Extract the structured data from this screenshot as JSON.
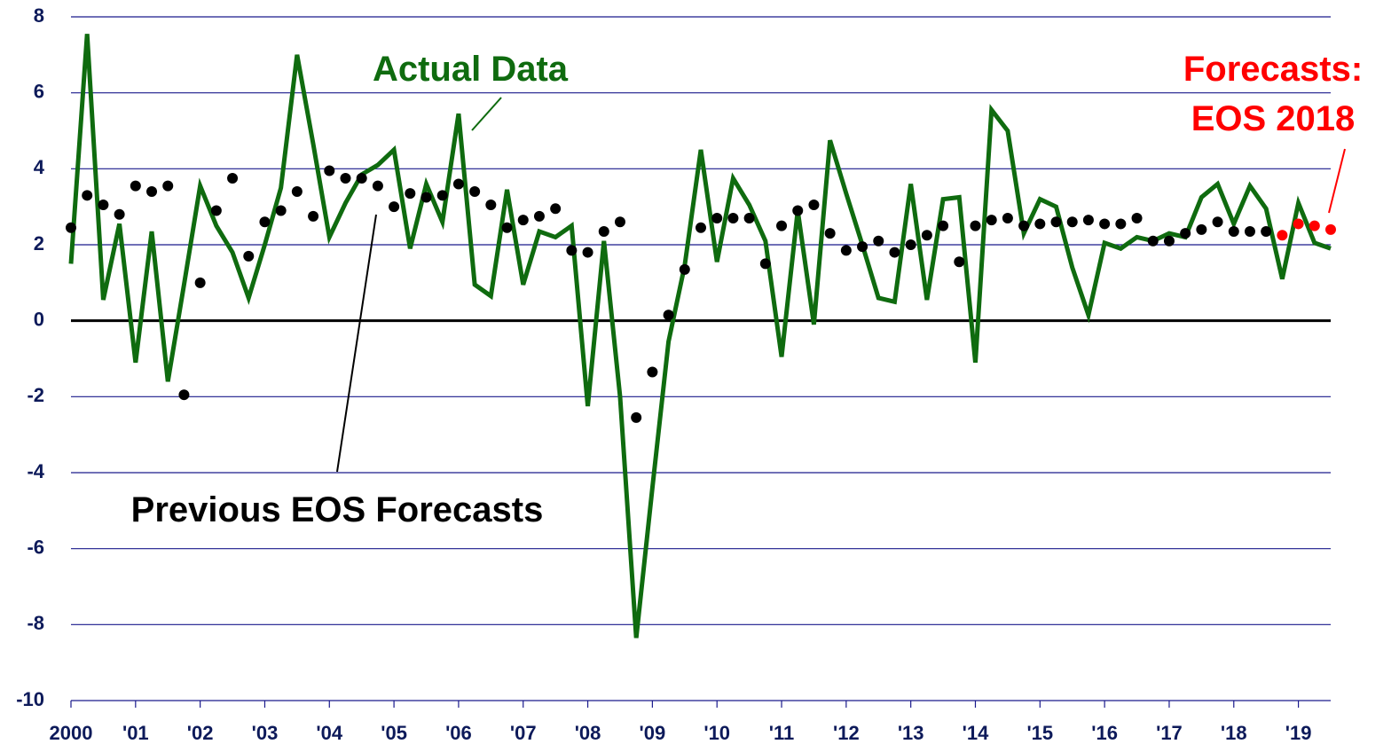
{
  "chart_data": {
    "type": "line",
    "ylim": [
      -10,
      8
    ],
    "yticks": [
      -10,
      -8,
      -6,
      -4,
      -2,
      0,
      2,
      4,
      6,
      8
    ],
    "grid": true,
    "xlim": [
      2000,
      2019.5
    ],
    "xticks": [
      2000,
      {
        "value": 2001,
        "label": "'01"
      },
      {
        "value": 2002,
        "label": "'02"
      },
      {
        "value": 2003,
        "label": "'03"
      },
      {
        "value": 2004,
        "label": "'04"
      },
      {
        "value": 2005,
        "label": "'05"
      },
      {
        "value": 2006,
        "label": "'06"
      },
      {
        "value": 2007,
        "label": "'07"
      },
      {
        "value": 2008,
        "label": "'08"
      },
      {
        "value": 2009,
        "label": "'09"
      },
      {
        "value": 2010,
        "label": "'10"
      },
      {
        "value": 2011,
        "label": "'11"
      },
      {
        "value": 2012,
        "label": "'12"
      },
      {
        "value": 2013,
        "label": "'13"
      },
      {
        "value": 2014,
        "label": "'14"
      },
      {
        "value": 2015,
        "label": "'15"
      },
      {
        "value": 2016,
        "label": "'16"
      },
      {
        "value": 2017,
        "label": "'17"
      },
      {
        "value": 2018,
        "label": "'18"
      },
      {
        "value": 2019,
        "label": "'19"
      }
    ],
    "series": [
      {
        "name": "Actual Data",
        "color": "#0f6b0f",
        "style": "line",
        "x": [
          2000,
          2000.25,
          2000.5,
          2000.75,
          2001,
          2001.25,
          2001.5,
          2001.75,
          2002,
          2002.25,
          2002.5,
          2002.75,
          2003,
          2003.25,
          2003.5,
          2003.75,
          2004,
          2004.25,
          2004.5,
          2004.75,
          2005,
          2005.25,
          2005.5,
          2005.75,
          2006,
          2006.25,
          2006.5,
          2006.75,
          2007,
          2007.25,
          2007.5,
          2007.75,
          2008,
          2008.25,
          2008.5,
          2008.75,
          2009,
          2009.25,
          2009.5,
          2009.75,
          2010,
          2010.25,
          2010.5,
          2010.75,
          2011,
          2011.25,
          2011.5,
          2011.75,
          2012,
          2012.25,
          2012.5,
          2012.75,
          2013,
          2013.25,
          2013.5,
          2013.75,
          2014,
          2014.25,
          2014.5,
          2014.75,
          2015,
          2015.25,
          2015.5,
          2015.75,
          2016,
          2016.25,
          2016.5,
          2016.75,
          2017,
          2017.25,
          2017.5,
          2017.75,
          2018,
          2018.25,
          2018.5,
          2018.75,
          2019,
          2019.25,
          2019.5
        ],
        "values": [
          1.5,
          7.55,
          0.55,
          2.55,
          -1.1,
          2.35,
          -1.6,
          0.95,
          3.55,
          2.5,
          1.8,
          0.6,
          2.0,
          3.5,
          7.0,
          4.65,
          2.2,
          3.1,
          3.85,
          4.1,
          4.5,
          1.9,
          3.6,
          2.6,
          5.45,
          0.95,
          0.65,
          3.45,
          0.95,
          2.35,
          2.2,
          2.5,
          -2.25,
          2.1,
          -2.0,
          -8.35,
          -4.4,
          -0.55,
          1.45,
          4.5,
          1.55,
          3.75,
          3.05,
          2.1,
          -0.95,
          2.9,
          -0.1,
          4.75,
          3.35,
          2.0,
          0.6,
          0.5,
          3.6,
          0.55,
          3.2,
          3.25,
          -1.1,
          5.55,
          5.0,
          2.3,
          3.2,
          3.0,
          1.4,
          0.15,
          2.05,
          1.9,
          2.2,
          2.1,
          2.3,
          2.2,
          3.25,
          3.6,
          2.55,
          3.55,
          2.95,
          1.1,
          3.1,
          2.05,
          1.9
        ]
      },
      {
        "name": "Previous EOS Forecasts",
        "color": "#000000",
        "style": "dots",
        "x": [
          2000,
          2000.25,
          2000.5,
          2000.75,
          2001,
          2001.25,
          2001.5,
          2001.75,
          2002,
          2002.25,
          2002.5,
          2002.75,
          2003,
          2003.25,
          2003.5,
          2003.75,
          2004,
          2004.25,
          2004.5,
          2004.75,
          2005,
          2005.25,
          2005.5,
          2005.75,
          2006,
          2006.25,
          2006.5,
          2006.75,
          2007,
          2007.25,
          2007.5,
          2007.75,
          2008,
          2008.25,
          2008.5,
          2008.75,
          2009,
          2009.25,
          2009.5,
          2009.75,
          2010,
          2010.25,
          2010.5,
          2010.75,
          2011,
          2011.25,
          2011.5,
          2011.75,
          2012,
          2012.25,
          2012.5,
          2012.75,
          2013,
          2013.25,
          2013.5,
          2013.75,
          2014,
          2014.25,
          2014.5,
          2014.75,
          2015,
          2015.25,
          2015.5,
          2015.75,
          2016,
          2016.25,
          2016.5,
          2016.75,
          2017,
          2017.25,
          2017.5,
          2017.75,
          2018,
          2018.25,
          2018.5
        ],
        "values": [
          2.45,
          3.3,
          3.05,
          2.8,
          3.55,
          3.4,
          3.55,
          -1.95,
          1.0,
          2.9,
          3.75,
          1.7,
          2.6,
          2.9,
          3.4,
          2.75,
          3.95,
          3.75,
          3.75,
          3.55,
          3.0,
          3.35,
          3.25,
          3.3,
          3.6,
          3.4,
          3.05,
          2.45,
          2.65,
          2.75,
          2.95,
          1.85,
          1.8,
          2.35,
          2.6,
          -2.55,
          -1.35,
          0.15,
          1.35,
          2.45,
          2.7,
          2.7,
          2.7,
          1.5,
          2.5,
          2.9,
          3.05,
          2.3,
          1.85,
          1.95,
          2.1,
          1.8,
          2.0,
          2.25,
          2.5,
          1.55,
          2.5,
          2.65,
          2.7,
          2.5,
          2.55,
          2.6,
          2.6,
          2.65,
          2.55,
          2.55,
          2.7,
          2.1,
          2.1,
          2.3,
          2.4,
          2.6,
          2.35,
          2.35,
          2.35
        ]
      },
      {
        "name": "Forecasts: EOS 2018",
        "color": "#ff0000",
        "style": "dots",
        "x": [
          2018.75,
          2019,
          2019.25,
          2019.5
        ],
        "values": [
          2.25,
          2.55,
          2.5,
          2.4
        ]
      }
    ]
  }
}
